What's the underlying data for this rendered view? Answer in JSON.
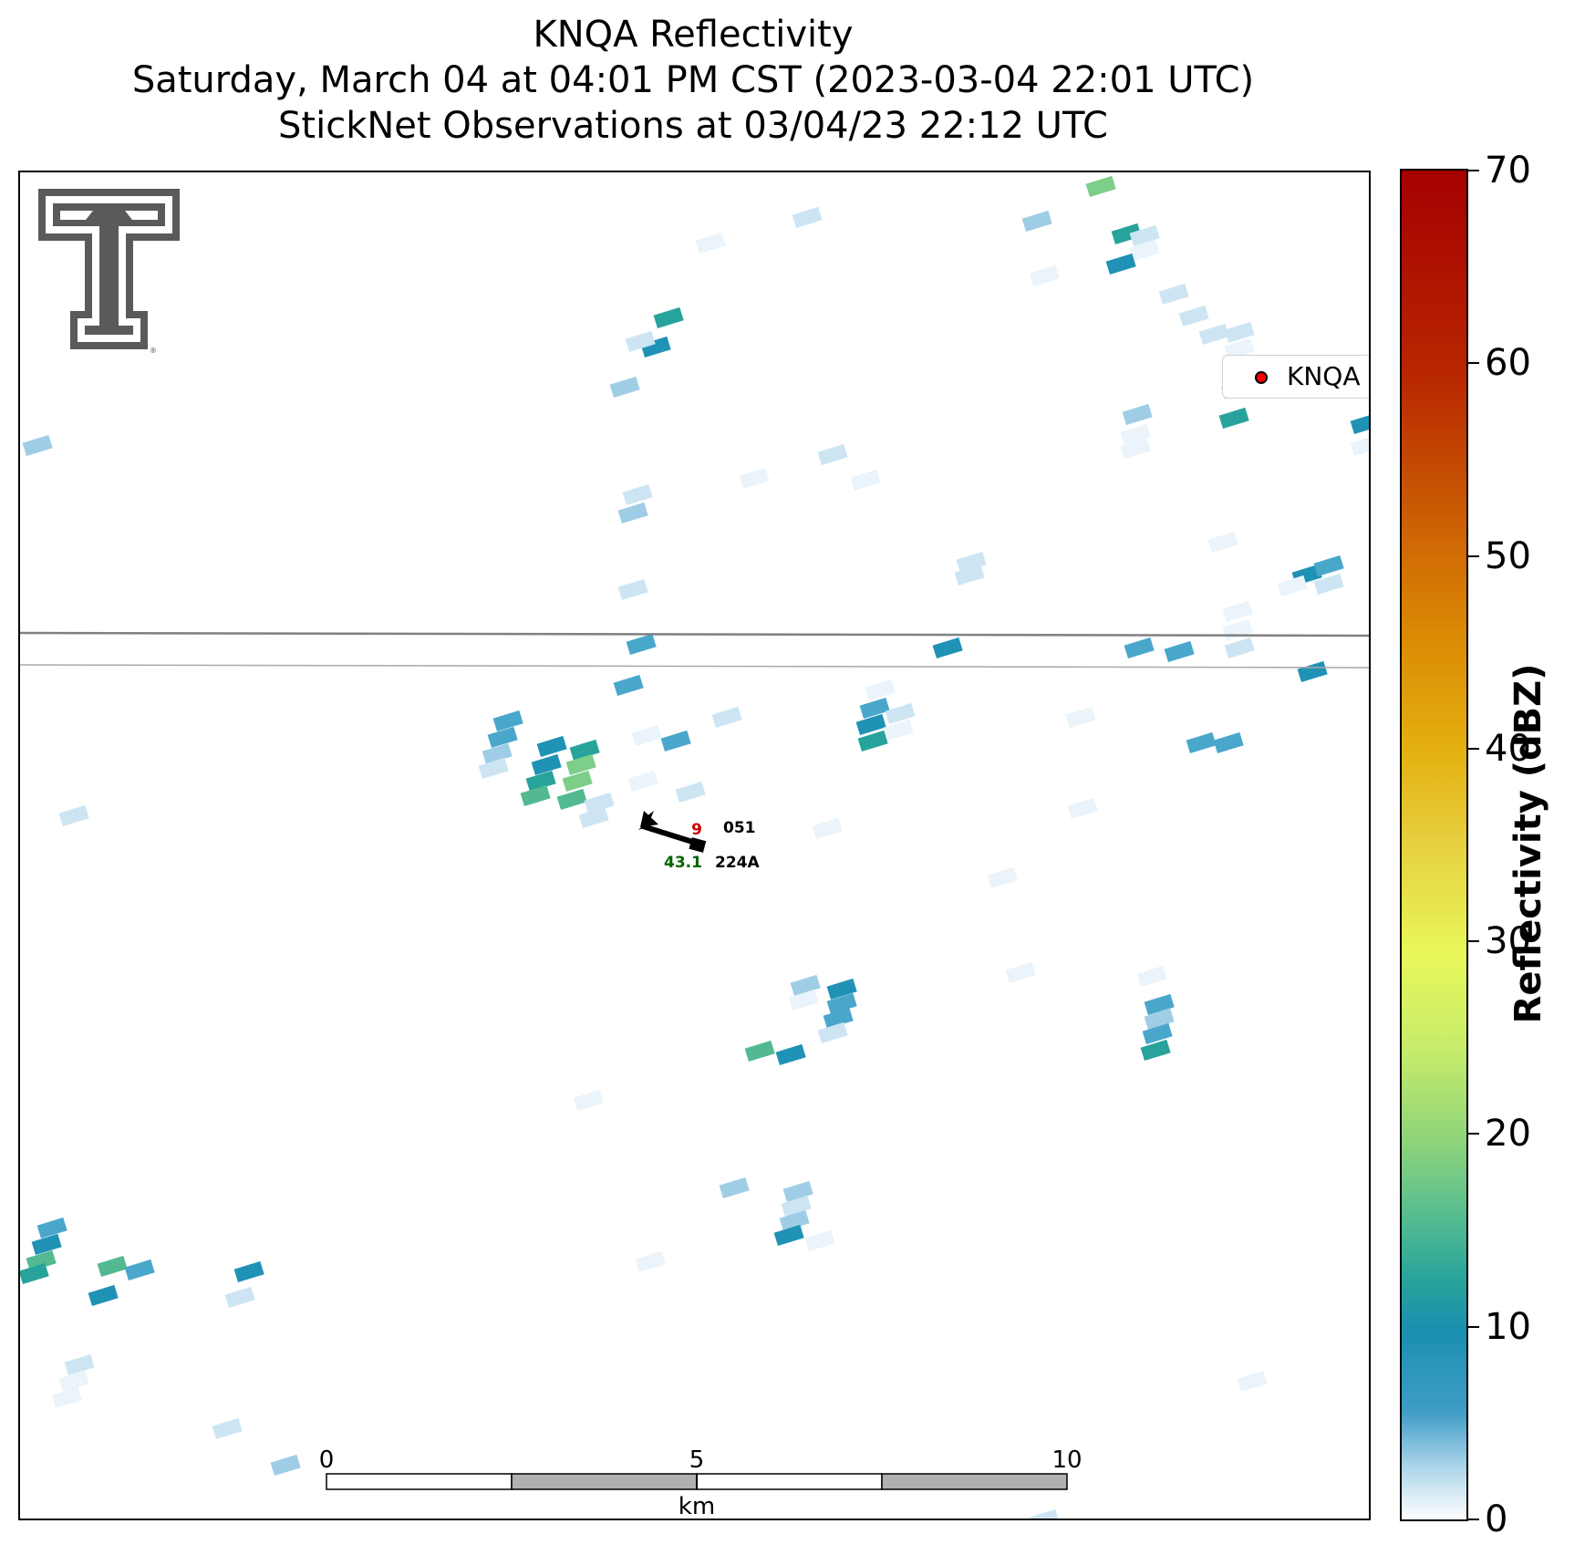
{
  "title": {
    "line1": "KNQA Reflectivity",
    "line2": "Saturday, March 04 at 04:01 PM CST (2023-03-04 22:01 UTC)",
    "line3": "StickNet Observations at 03/04/23 22:12 UTC"
  },
  "legend": {
    "label": "KNQA",
    "marker_color": "#ff0000"
  },
  "colorbar": {
    "label": "Reflectivity (dBZ)",
    "min": 0,
    "max": 70,
    "ticks": [
      "0",
      "10",
      "20",
      "30",
      "40",
      "50",
      "60",
      "70"
    ]
  },
  "scale_bar": {
    "labels": [
      "0",
      "5",
      "10"
    ],
    "unit": "km"
  },
  "station": {
    "temperature": "9",
    "pressure": "051",
    "dewpoint": "43.1",
    "id": "224A",
    "temperature_color": "#cc0000",
    "dewpoint_color": "#006400"
  },
  "logo": {
    "name": "Texas Tech double T logo",
    "lettering": "T"
  },
  "icons": {
    "legend_marker": "red-dot-icon",
    "wind_barb": "wind-barb-icon"
  }
}
